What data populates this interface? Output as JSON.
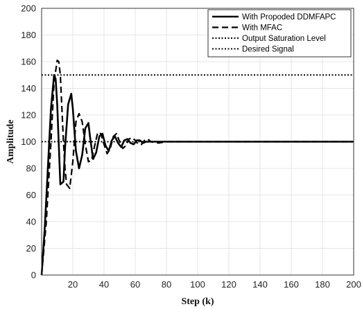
{
  "chart_data": {
    "type": "line",
    "title": "",
    "xlabel": "Step (k)",
    "ylabel": "Amplitude",
    "xlim": [
      0,
      200
    ],
    "ylim": [
      0,
      200
    ],
    "x_ticks": [
      20,
      40,
      60,
      80,
      100,
      120,
      140,
      160,
      180,
      200
    ],
    "y_ticks": [
      0,
      20,
      40,
      60,
      80,
      100,
      120,
      140,
      160,
      180,
      200
    ],
    "grid": true,
    "legend_position": "top-right",
    "series": [
      {
        "name": "With Propoded DDMFAPC",
        "style": "solid",
        "color": "#000000",
        "x": [
          0,
          2,
          4,
          6,
          8,
          9,
          10,
          12,
          14,
          15,
          17,
          19,
          20,
          22,
          24,
          26,
          28,
          30,
          31,
          33,
          35,
          37,
          39,
          41,
          43,
          45,
          47,
          49,
          51,
          53,
          55,
          57,
          59,
          61,
          63,
          65,
          67,
          70,
          75,
          80,
          90,
          100,
          120,
          150,
          200
        ],
        "y": [
          0,
          35,
          80,
          125,
          150,
          147,
          128,
          68,
          70,
          95,
          128,
          136,
          125,
          93,
          80,
          90,
          110,
          114,
          104,
          87,
          92,
          104,
          106,
          97,
          93,
          101,
          104,
          99,
          96,
          101,
          102,
          99,
          98,
          101,
          101,
          99,
          100,
          100,
          100,
          100,
          100,
          100,
          100,
          100,
          100
        ]
      },
      {
        "name": "With MFAC",
        "style": "dashed",
        "color": "#000000",
        "x": [
          0,
          3,
          6,
          8,
          10,
          11,
          12,
          13,
          14,
          15,
          16,
          18,
          20,
          22,
          24,
          26,
          28,
          30,
          32,
          34,
          36,
          38,
          40,
          42,
          44,
          46,
          48,
          50,
          52,
          54,
          56,
          58,
          60,
          62,
          64,
          66,
          68,
          70,
          75,
          80,
          90,
          100,
          120,
          150,
          200
        ],
        "y": [
          0,
          40,
          100,
          145,
          161,
          160,
          150,
          125,
          100,
          80,
          68,
          65,
          85,
          115,
          121,
          115,
          98,
          85,
          86,
          97,
          107,
          106,
          98,
          91,
          95,
          104,
          106,
          100,
          95,
          97,
          102,
          103,
          101,
          98,
          98,
          101,
          102,
          100,
          99,
          100,
          100,
          100,
          100,
          100,
          100
        ]
      },
      {
        "name": "Output Saturation Level",
        "style": "dotted",
        "color": "#000000",
        "x": [
          0,
          200
        ],
        "y": [
          100,
          100
        ]
      },
      {
        "name": "Desired Signal",
        "style": "dotted",
        "color": "#000000",
        "x": [
          0,
          200
        ],
        "y": [
          150,
          150
        ]
      }
    ]
  }
}
